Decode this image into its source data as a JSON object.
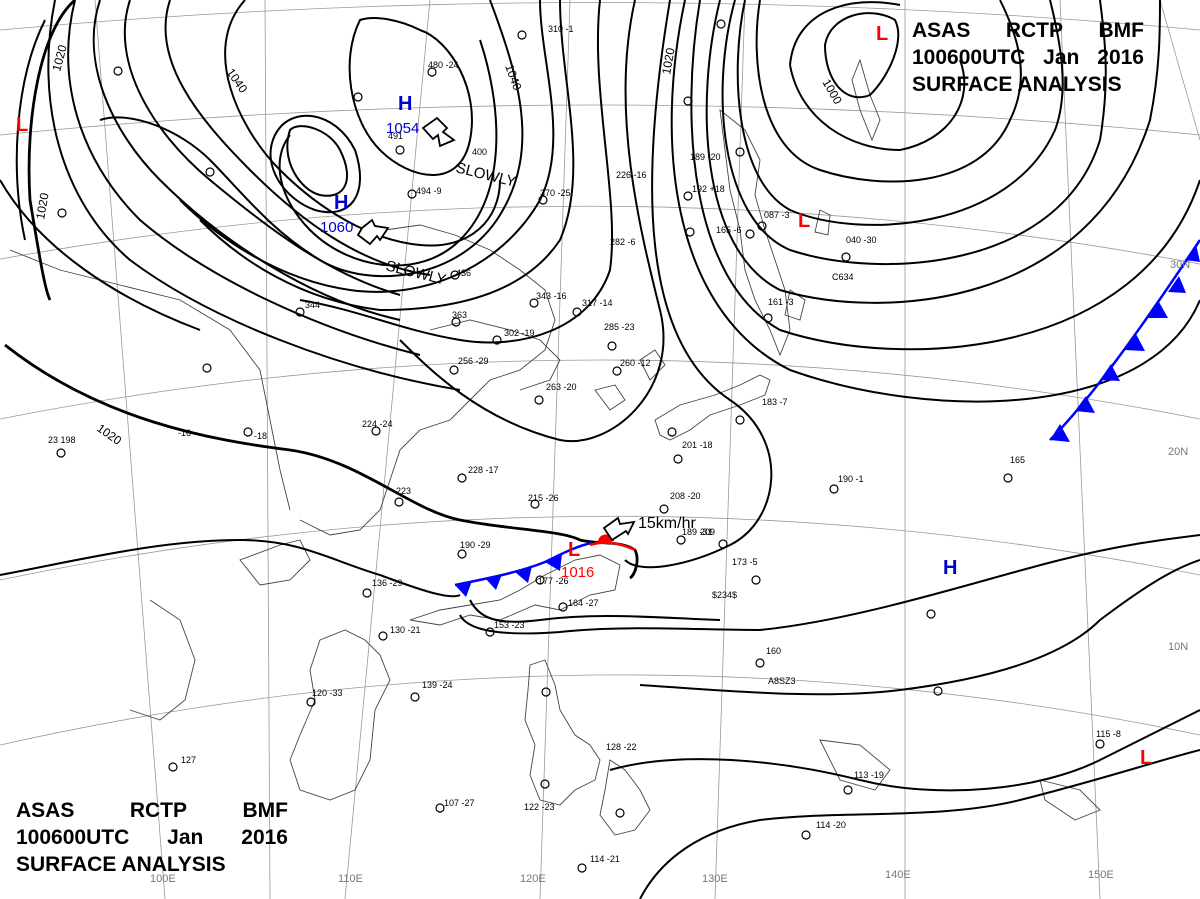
{
  "header": {
    "agency": "ASAS",
    "station": "RCTP",
    "office": "BMF",
    "time": "100600UTC",
    "month": "Jan",
    "year": "2016",
    "product": "SURFACE ANALYSIS"
  },
  "pressure_centers": [
    {
      "type": "H",
      "value": "1054",
      "color": "#0000cc"
    },
    {
      "type": "H",
      "value": "1060",
      "color": "#0000cc"
    },
    {
      "type": "L",
      "value": "1016",
      "color": "#ff0000"
    },
    {
      "type": "H",
      "value": "",
      "color": "#0000cc"
    },
    {
      "type": "L",
      "value": "",
      "color": "#ff0000"
    },
    {
      "type": "L",
      "value": "",
      "color": "#ff0000"
    },
    {
      "type": "L",
      "value": "",
      "color": "#ff0000"
    },
    {
      "type": "L",
      "value": "",
      "color": "#ff0000"
    }
  ],
  "isobar_labels": [
    "1000",
    "1020",
    "1020",
    "1020",
    "1040",
    "1040",
    "1020"
  ],
  "motions": [
    "SLOWLY",
    "SLOWLY",
    "15km/hr"
  ],
  "longitudes": [
    "100E",
    "110E",
    "120E",
    "130E",
    "140E",
    "150E"
  ],
  "latitudes": [
    "30N",
    "20N",
    "10N"
  ],
  "stations": [
    {
      "label": "23 198"
    },
    {
      "label": "-16"
    },
    {
      "label": "-18"
    },
    {
      "label": "224 -24"
    },
    {
      "label": "228 -17"
    },
    {
      "label": "223"
    },
    {
      "label": "215 -26"
    },
    {
      "label": "190 -29"
    },
    {
      "label": "136 -29"
    },
    {
      "label": "130 -21"
    },
    {
      "label": "139 -24"
    },
    {
      "label": "120 -33"
    },
    {
      "label": "127"
    },
    {
      "label": "107 -27"
    },
    {
      "label": "122 -23"
    },
    {
      "label": "114 -21"
    },
    {
      "label": "128 -22"
    },
    {
      "label": "153 -23"
    },
    {
      "label": "164 -27"
    },
    {
      "label": "177 -26"
    },
    {
      "label": "208 -20"
    },
    {
      "label": "189 -31"
    },
    {
      "label": "209"
    },
    {
      "label": "173 -5"
    },
    {
      "label": "190 -1"
    },
    {
      "label": "160"
    },
    {
      "label": "165"
    },
    {
      "label": "113 -19"
    },
    {
      "label": "114 -20"
    },
    {
      "label": "115 -8"
    },
    {
      "label": "183 -7"
    },
    {
      "label": "201 -18"
    },
    {
      "label": "260 -12"
    },
    {
      "label": "263 -20"
    },
    {
      "label": "256 -29"
    },
    {
      "label": "302 -19"
    },
    {
      "label": "317 -14"
    },
    {
      "label": "343 -16"
    },
    {
      "label": "363"
    },
    {
      "label": "344"
    },
    {
      "label": "436"
    },
    {
      "label": "494 -9"
    },
    {
      "label": "491"
    },
    {
      "label": "480 -24"
    },
    {
      "label": "310 -1"
    },
    {
      "label": "370 -25"
    },
    {
      "label": "226 -16"
    },
    {
      "label": "192 +18"
    },
    {
      "label": "189 -20"
    },
    {
      "label": "165 -6"
    },
    {
      "label": "087 -3"
    },
    {
      "label": "040 -30"
    },
    {
      "label": "161 -3"
    },
    {
      "label": "282 -6"
    },
    {
      "label": "285 -23"
    },
    {
      "label": "400"
    },
    {
      "label": "$234$"
    },
    {
      "label": "A8SZ3"
    },
    {
      "label": "C634"
    }
  ]
}
